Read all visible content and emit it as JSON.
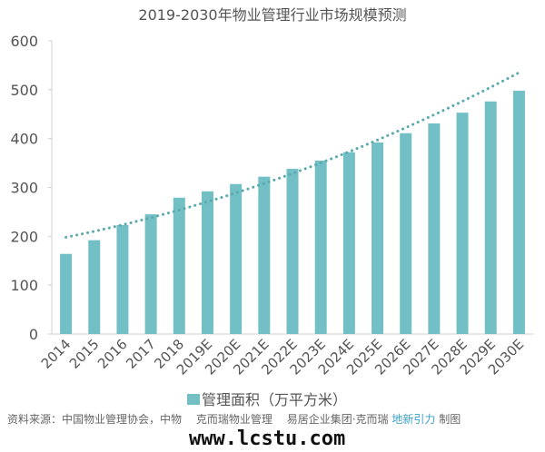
{
  "chart_data": {
    "type": "bar",
    "title": "2019-2030年物业管理行业市场规模预测",
    "categories": [
      "2014",
      "2015",
      "2016",
      "2017",
      "2018",
      "2019E",
      "2020E",
      "2021E",
      "2022E",
      "2023E",
      "2024E",
      "2025E",
      "2026E",
      "2027E",
      "2028E",
      "2029E",
      "2030E"
    ],
    "series": [
      {
        "name": "管理面积（万平方米）",
        "values": [
          164,
          192,
          223,
          245,
          279,
          292,
          307,
          322,
          338,
          355,
          372,
          392,
          411,
          431,
          453,
          476,
          498
        ]
      }
    ],
    "trendline": {
      "type": "polynomial",
      "style": "dotted",
      "start": 198,
      "end": 535
    },
    "ylim": [
      0,
      600
    ],
    "yticks": [
      0,
      100,
      200,
      300,
      400,
      500,
      600
    ],
    "grid": false,
    "legend": "bottom",
    "colors": {
      "bar": "#72c0c5",
      "trend": "#5aa9ae"
    }
  },
  "footer": {
    "source": "资料来源：中国物业管理协会，中物",
    "mid": "克而瑞物业管理",
    "org": "易居企业集团·克而瑞",
    "brand": "地新引力",
    "made": "制图",
    "watermark": "www.lcstu.com"
  }
}
